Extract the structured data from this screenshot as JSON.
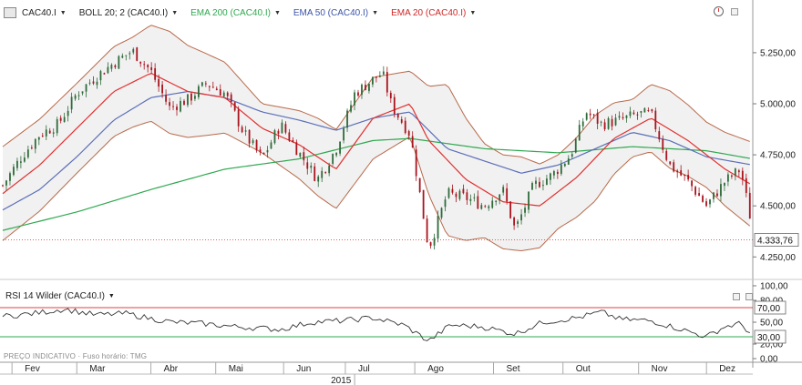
{
  "chart_data": [
    {
      "type": "candlestick",
      "symbol": "CAC40.I",
      "legend": [
        "CAC40.I",
        "BOLL 20; 2 (CAC40.I)",
        "EMA 200 (CAC40.I)",
        "EMA 50 (CAC40.I)",
        "EMA 20 (CAC40.I)"
      ],
      "series_colors": {
        "boll": "#b8694a",
        "ema200": "#2fa84f",
        "ema50": "#5b6fb8",
        "ema20": "#e23030",
        "up": "#2f6a3a",
        "down": "#a8141e",
        "band_fill": "#f1f1f1"
      },
      "ylim": [
        4180,
        5410
      ],
      "y_ticks": [
        "5.250,00",
        "5.000,00",
        "4.750,00",
        "4.500,00",
        "4.250,00"
      ],
      "y_tick_values": [
        5250,
        5000,
        4750,
        4500,
        4250
      ],
      "last_price": 4333.76,
      "last_price_label": "4.333,76",
      "close_path": [
        [
          0,
          4600
        ],
        [
          12,
          4740
        ],
        [
          24,
          4850
        ],
        [
          36,
          4900
        ],
        [
          48,
          5050
        ],
        [
          60,
          5130
        ],
        [
          72,
          5200
        ],
        [
          84,
          5260
        ],
        [
          96,
          5160
        ],
        [
          108,
          4980
        ],
        [
          120,
          5020
        ],
        [
          132,
          5100
        ],
        [
          144,
          5050
        ],
        [
          156,
          4860
        ],
        [
          168,
          4730
        ],
        [
          180,
          4900
        ],
        [
          192,
          4760
        ],
        [
          204,
          4630
        ],
        [
          216,
          4780
        ],
        [
          228,
          5050
        ],
        [
          240,
          5120
        ],
        [
          246,
          5150
        ],
        [
          252,
          4990
        ],
        [
          264,
          4850
        ],
        [
          276,
          4290
        ],
        [
          288,
          4560
        ],
        [
          300,
          4540
        ],
        [
          312,
          4500
        ],
        [
          324,
          4580
        ],
        [
          332,
          4380
        ],
        [
          344,
          4600
        ],
        [
          356,
          4650
        ],
        [
          368,
          4750
        ],
        [
          378,
          4960
        ],
        [
          388,
          4900
        ],
        [
          400,
          4920
        ],
        [
          412,
          4950
        ],
        [
          420,
          4950
        ],
        [
          432,
          4700
        ],
        [
          444,
          4620
        ],
        [
          456,
          4500
        ],
        [
          468,
          4620
        ],
        [
          478,
          4680
        ],
        [
          484,
          4460
        ],
        [
          486,
          4333.76
        ]
      ],
      "sma20": [
        [
          0,
          4560
        ],
        [
          24,
          4700
        ],
        [
          48,
          4880
        ],
        [
          72,
          5060
        ],
        [
          96,
          5150
        ],
        [
          120,
          5060
        ],
        [
          144,
          5030
        ],
        [
          168,
          4880
        ],
        [
          192,
          4800
        ],
        [
          216,
          4680
        ],
        [
          240,
          4930
        ],
        [
          264,
          5000
        ],
        [
          276,
          4820
        ],
        [
          300,
          4630
        ],
        [
          324,
          4520
        ],
        [
          348,
          4500
        ],
        [
          372,
          4640
        ],
        [
          396,
          4830
        ],
        [
          420,
          4930
        ],
        [
          444,
          4820
        ],
        [
          468,
          4680
        ],
        [
          486,
          4600
        ]
      ],
      "boll_width": [
        [
          0,
          230
        ],
        [
          48,
          220
        ],
        [
          84,
          220
        ],
        [
          108,
          250
        ],
        [
          132,
          200
        ],
        [
          168,
          120
        ],
        [
          204,
          190
        ],
        [
          240,
          200
        ],
        [
          264,
          160
        ],
        [
          288,
          370
        ],
        [
          312,
          230
        ],
        [
          336,
          230
        ],
        [
          360,
          180
        ],
        [
          384,
          210
        ],
        [
          408,
          140
        ],
        [
          432,
          190
        ],
        [
          456,
          160
        ],
        [
          486,
          210
        ]
      ],
      "ema50": [
        [
          0,
          4480
        ],
        [
          24,
          4580
        ],
        [
          48,
          4740
        ],
        [
          72,
          4920
        ],
        [
          96,
          5030
        ],
        [
          120,
          5060
        ],
        [
          144,
          5030
        ],
        [
          168,
          4960
        ],
        [
          192,
          4920
        ],
        [
          216,
          4870
        ],
        [
          240,
          4930
        ],
        [
          264,
          4960
        ],
        [
          288,
          4780
        ],
        [
          312,
          4720
        ],
        [
          336,
          4660
        ],
        [
          360,
          4700
        ],
        [
          384,
          4780
        ],
        [
          408,
          4860
        ],
        [
          432,
          4820
        ],
        [
          456,
          4740
        ],
        [
          486,
          4700
        ]
      ],
      "ema200": [
        [
          0,
          4380
        ],
        [
          48,
          4470
        ],
        [
          96,
          4580
        ],
        [
          144,
          4680
        ],
        [
          192,
          4730
        ],
        [
          240,
          4820
        ],
        [
          264,
          4830
        ],
        [
          312,
          4780
        ],
        [
          360,
          4760
        ],
        [
          408,
          4790
        ],
        [
          456,
          4770
        ],
        [
          486,
          4730
        ]
      ],
      "x_axis": {
        "months": [
          "Fev",
          "Mar",
          "Abr",
          "Mai",
          "Jun",
          "Jul",
          "Ago",
          "Set",
          "Out",
          "Nov",
          "Dez"
        ],
        "month_starts": [
          6,
          48,
          96,
          138,
          182,
          222,
          267,
          318,
          363,
          412,
          456
        ],
        "year_label": "2015",
        "year_start": 228,
        "total_days": 486
      }
    },
    {
      "type": "line",
      "title": "RSI 14 Wilder (CAC40.I)",
      "ylim": [
        0,
        100
      ],
      "y_ticks": [
        "100,00",
        "80,00",
        "50,00",
        "20,00",
        "0,00"
      ],
      "y_tick_values": [
        100,
        80,
        50,
        20,
        0
      ],
      "levels": [
        "70,00",
        "30,00"
      ],
      "level_values": [
        70,
        30
      ],
      "level_color": "#e04040",
      "level_color_low": "#2fa84f",
      "line_color": "#333333",
      "path": [
        [
          0,
          58
        ],
        [
          20,
          62
        ],
        [
          40,
          68
        ],
        [
          60,
          60
        ],
        [
          80,
          62
        ],
        [
          96,
          55
        ],
        [
          110,
          50
        ],
        [
          130,
          48
        ],
        [
          150,
          44
        ],
        [
          165,
          42
        ],
        [
          180,
          40
        ],
        [
          200,
          50
        ],
        [
          220,
          52
        ],
        [
          240,
          56
        ],
        [
          260,
          46
        ],
        [
          276,
          24
        ],
        [
          290,
          46
        ],
        [
          310,
          44
        ],
        [
          332,
          34
        ],
        [
          350,
          50
        ],
        [
          372,
          56
        ],
        [
          388,
          64
        ],
        [
          400,
          54
        ],
        [
          420,
          52
        ],
        [
          440,
          40
        ],
        [
          456,
          30
        ],
        [
          468,
          44
        ],
        [
          478,
          48
        ],
        [
          486,
          32
        ]
      ]
    }
  ],
  "ui": {
    "footer_note": "PREÇO INDICATIVO · Fuso horário: TMG",
    "rsi_label": "RSI 14 Wilder (CAC40.I)"
  }
}
